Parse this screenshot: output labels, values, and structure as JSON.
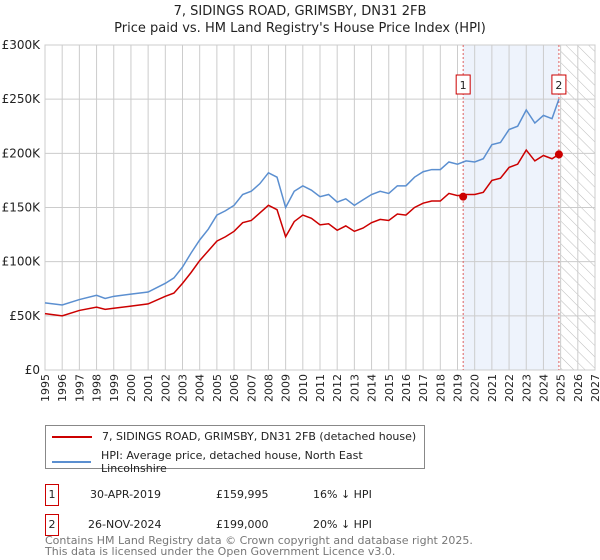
{
  "chart_data": {
    "type": "line",
    "title": "7, SIDINGS ROAD, GRIMSBY, DN31 2FB",
    "subtitle": "Price paid vs. HM Land Registry's House Price Index (HPI)",
    "xlim": [
      1995,
      2027
    ],
    "ylim": [
      0,
      300000
    ],
    "y_ticks": [
      0,
      50000,
      100000,
      150000,
      200000,
      250000,
      300000
    ],
    "y_tick_labels": [
      "£0",
      "£50K",
      "£100K",
      "£150K",
      "£200K",
      "£250K",
      "£300K"
    ],
    "x_ticks": [
      "1995",
      "1996",
      "1997",
      "1998",
      "1999",
      "2000",
      "2001",
      "2002",
      "2003",
      "2004",
      "2005",
      "2006",
      "2007",
      "2008",
      "2009",
      "2010",
      "2011",
      "2012",
      "2013",
      "2014",
      "2015",
      "2016",
      "2017",
      "2018",
      "2019",
      "2020",
      "2021",
      "2022",
      "2023",
      "2024",
      "2025",
      "2026",
      "2027"
    ],
    "grid": true,
    "x": [
      1995,
      1996,
      1997,
      1998,
      1998.5,
      1999,
      2000,
      2001,
      2002,
      2002.5,
      2003,
      2003.5,
      2004,
      2004.5,
      2005,
      2005.5,
      2006,
      2006.5,
      2007,
      2007.5,
      2008,
      2008.5,
      2009,
      2009.5,
      2010,
      2010.5,
      2011,
      2011.5,
      2012,
      2012.5,
      2013,
      2013.5,
      2014,
      2014.5,
      2015,
      2015.5,
      2016,
      2016.5,
      2017,
      2017.5,
      2018,
      2018.5,
      2019,
      2019.5,
      2020,
      2020.5,
      2021,
      2021.5,
      2022,
      2022.5,
      2023,
      2023.5,
      2024,
      2024.5,
      2024.9
    ],
    "series": [
      {
        "name": "7, SIDINGS ROAD, GRIMSBY, DN31 2FB (detached house)",
        "color": "#cc0000",
        "values": [
          52000,
          50000,
          55000,
          58000,
          56000,
          57000,
          59000,
          61000,
          68000,
          71000,
          80000,
          90000,
          101000,
          110000,
          119000,
          123000,
          128000,
          136000,
          138000,
          145000,
          152000,
          148000,
          123000,
          137000,
          143000,
          140000,
          134000,
          135000,
          129000,
          133000,
          128000,
          131000,
          136000,
          139000,
          138000,
          144000,
          143000,
          150000,
          154000,
          156000,
          156000,
          163000,
          161000,
          162000,
          162000,
          164000,
          175000,
          177000,
          187000,
          190000,
          203000,
          193000,
          198000,
          195000,
          199000
        ]
      },
      {
        "name": "HPI: Average price, detached house, North East Lincolnshire",
        "color": "#5b8fd0",
        "values": [
          62000,
          60000,
          65000,
          69000,
          66000,
          68000,
          70000,
          72000,
          80000,
          85000,
          95000,
          108000,
          120000,
          130000,
          143000,
          147000,
          152000,
          162000,
          165000,
          172000,
          182000,
          178000,
          150000,
          165000,
          170000,
          166000,
          160000,
          162000,
          155000,
          158000,
          152000,
          157000,
          162000,
          165000,
          163000,
          170000,
          170000,
          178000,
          183000,
          185000,
          185000,
          192000,
          190000,
          193000,
          192000,
          195000,
          208000,
          210000,
          222000,
          225000,
          240000,
          228000,
          235000,
          232000,
          250000
        ]
      }
    ],
    "annotations": [
      {
        "label": "1",
        "x": 2019.33,
        "y": 159995,
        "date": "30-APR-2019",
        "price": "£159,995",
        "hpi": "16% ↓ HPI"
      },
      {
        "label": "2",
        "x": 2024.9,
        "y": 199000,
        "date": "26-NOV-2024",
        "price": "£199,000",
        "hpi": "20% ↓ HPI"
      }
    ],
    "shaded_range": [
      2019.33,
      2024.9
    ],
    "hatched_range": [
      2025,
      2027
    ],
    "legend_position": "below"
  },
  "footer": {
    "line1": "Contains HM Land Registry data © Crown copyright and database right 2025.",
    "line2": "This data is licensed under the Open Government Licence v3.0."
  }
}
